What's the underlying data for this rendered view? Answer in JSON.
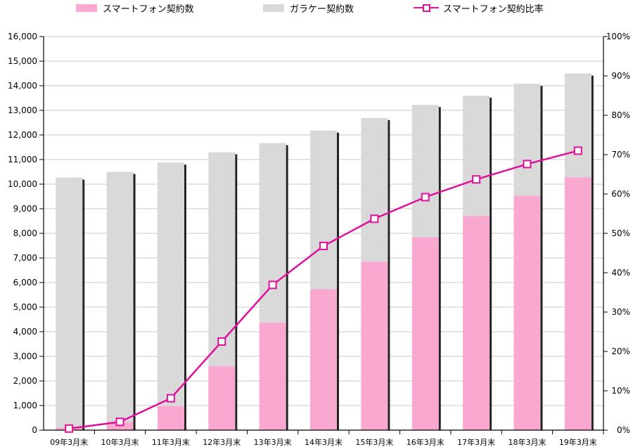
{
  "chart_data": {
    "type": "bar",
    "categories": [
      "09年3月末",
      "10年3月末",
      "11年3月末",
      "12年3月末",
      "13年3月末",
      "14年3月末",
      "15年3月末",
      "16年3月末",
      "17年3月末",
      "18年3月末",
      "19年3月末"
    ],
    "series": [
      {
        "name": "スマートフォン契約数",
        "kind": "stacked-bar",
        "axis": "left",
        "color": "#f9a8d0",
        "values": [
          100,
          330,
          980,
          2600,
          4370,
          5730,
          6850,
          7840,
          8700,
          9530,
          10280
        ]
      },
      {
        "name": "ガラケー契約数",
        "kind": "stacked-bar",
        "axis": "left",
        "color": "#d9d9d9",
        "values": [
          10170,
          10170,
          9900,
          8700,
          7300,
          6450,
          5840,
          5380,
          4900,
          4550,
          4220
        ]
      },
      {
        "name": "スマートフォン契約比率",
        "kind": "line",
        "axis": "right",
        "color": "#e0109a",
        "values": [
          0.4,
          2.1,
          8.1,
          22.5,
          36.9,
          46.8,
          53.7,
          59.2,
          63.7,
          67.6,
          71.0
        ]
      }
    ],
    "y_left": {
      "min": 0,
      "max": 16000,
      "step": 1000,
      "tick_labels": [
        "0",
        "1,000",
        "2,000",
        "3,000",
        "4,000",
        "5,000",
        "6,000",
        "7,000",
        "8,000",
        "9,000",
        "10,000",
        "11,000",
        "12,000",
        "13,000",
        "14,000",
        "15,000",
        "16,000"
      ]
    },
    "y_right": {
      "min": 0,
      "max": 100,
      "step": 10,
      "tick_labels": [
        "0%",
        "10%",
        "20%",
        "30%",
        "40%",
        "50%",
        "60%",
        "70%",
        "80%",
        "90%",
        "100%"
      ]
    },
    "grid": true,
    "legend_position": "top"
  }
}
